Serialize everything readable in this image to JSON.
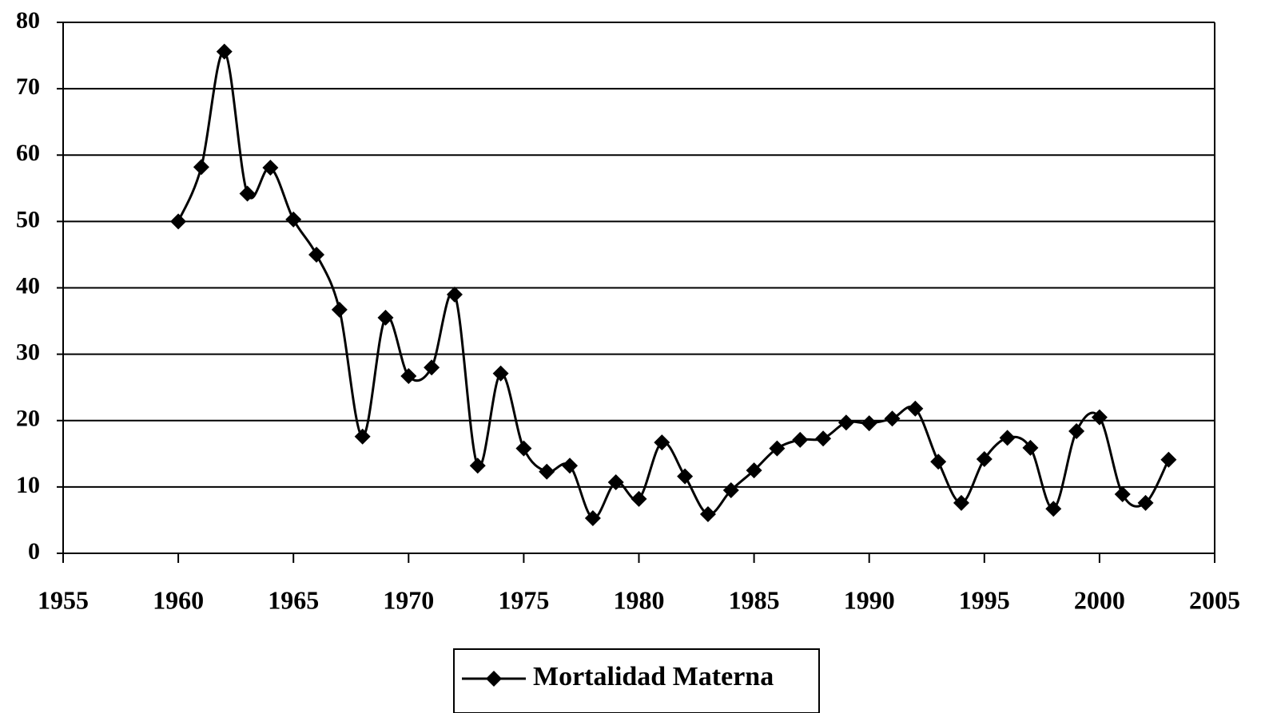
{
  "chart_data": {
    "type": "line",
    "x": [
      1960,
      1961,
      1962,
      1963,
      1964,
      1965,
      1966,
      1967,
      1968,
      1969,
      1970,
      1971,
      1972,
      1973,
      1974,
      1975,
      1976,
      1977,
      1978,
      1979,
      1980,
      1981,
      1982,
      1983,
      1984,
      1985,
      1986,
      1987,
      1988,
      1989,
      1990,
      1991,
      1992,
      1993,
      1994,
      1995,
      1996,
      1997,
      1998,
      1999,
      2000,
      2001,
      2002,
      2003
    ],
    "series": [
      {
        "name": "Mortalidad Materna",
        "color": "#000000",
        "values": [
          50,
          58.2,
          75.6,
          54.2,
          58.1,
          50.3,
          45,
          36.7,
          17.6,
          35.5,
          26.7,
          28,
          39,
          13.2,
          27.1,
          15.8,
          12.3,
          13.2,
          5.3,
          10.7,
          8.2,
          16.7,
          11.6,
          5.9,
          9.5,
          12.5,
          15.8,
          17.1,
          17.3,
          19.7,
          19.6,
          20.3,
          21.8,
          13.8,
          7.6,
          14.2,
          17.4,
          15.9,
          6.7,
          18.4,
          20.5,
          8.9,
          7.6,
          14.1
        ]
      }
    ],
    "xlim": [
      1955,
      2005
    ],
    "xticks": [
      1955,
      1960,
      1965,
      1970,
      1975,
      1980,
      1985,
      1990,
      1995,
      2000,
      2005
    ],
    "ylim": [
      0,
      80
    ],
    "yticks": [
      0,
      10,
      20,
      30,
      40,
      50,
      60,
      70,
      80
    ],
    "grid": true,
    "legend": "bottom"
  }
}
